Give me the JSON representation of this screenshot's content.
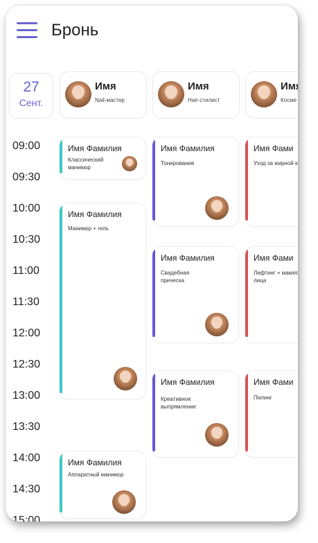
{
  "header": {
    "title": "Бронь",
    "menu_icon": "hamburger-menu-icon",
    "accent": "#6b63cf"
  },
  "date": {
    "day": "27",
    "month": "Сент."
  },
  "staff": [
    {
      "name": "Имя",
      "role": "Nail-мастер"
    },
    {
      "name": "Имя",
      "role": "Hair-стилист"
    },
    {
      "name": "Имя",
      "role": "Косме"
    }
  ],
  "times": [
    "09:00",
    "09:30",
    "10:00",
    "10:30",
    "11:00",
    "11:30",
    "12:00",
    "12:30",
    "13:00",
    "13:30",
    "14:00",
    "14:30",
    "15:00"
  ],
  "appointments": {
    "a1": {
      "name": "Имя Фамилия",
      "service": "Классический маникюр",
      "color": "#3cc8c4"
    },
    "a2": {
      "name": "Имя Фамилия",
      "service": "Маникюр + гель",
      "color": "#3cc8c4"
    },
    "a3": {
      "name": "Имя Фамилия",
      "service": "Аппаратный маникюр",
      "color": "#3cc8c4"
    },
    "b1": {
      "name": "Имя Фамилия",
      "service": "Тонирование",
      "color": "#6b55d6"
    },
    "b2": {
      "name": "Имя Фамилия",
      "service": "Свадебная прическа",
      "color": "#6b55d6"
    },
    "b3": {
      "name": "Имя Фамилия",
      "service": "Креативное выпрямление",
      "color": "#6b55d6"
    },
    "c1": {
      "name": "Имя Фами",
      "service": "Уход за жирной кожей",
      "color": "#d45555"
    },
    "c2": {
      "name": "Имя Фами",
      "service": "Лифтинг + макияж лица",
      "color": "#d45555"
    },
    "c3": {
      "name": "Имя Фами",
      "service": "Пилинг",
      "color": "#d45555"
    }
  }
}
